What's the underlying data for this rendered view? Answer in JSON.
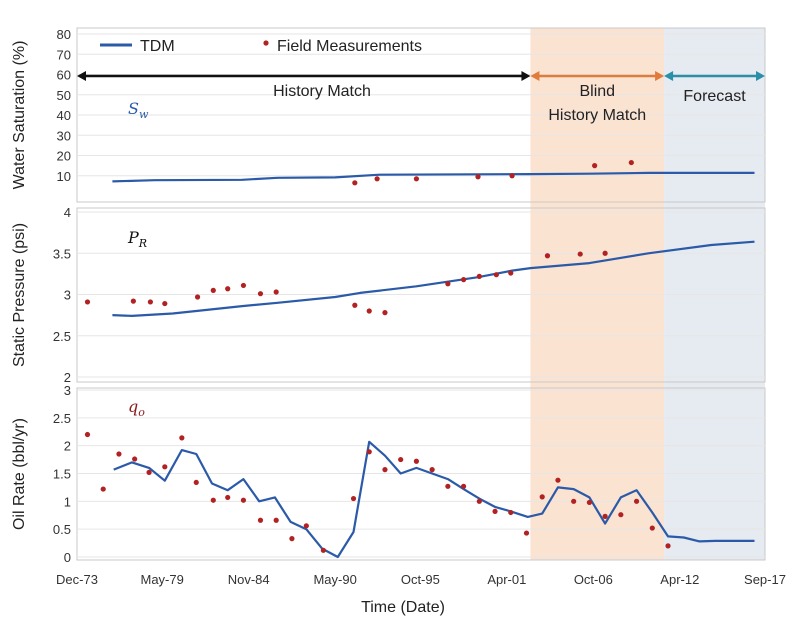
{
  "chart_data": {
    "type": "line",
    "xlabel": "Time (Date)",
    "x_ticks": [
      "Dec-73",
      "May-79",
      "Nov-84",
      "May-90",
      "Oct-95",
      "Apr-01",
      "Oct-06",
      "Apr-12",
      "Sep-17"
    ],
    "legend": {
      "line_label": "TDM",
      "dots_label": "Field Measurements",
      "placement": "top-left"
    },
    "colors": {
      "model": "#2b5aa8",
      "field": "#b22222",
      "history": "#111111",
      "blind": "#e07b39",
      "forecast": "#2a8fa8",
      "blind_fill": "#fbe3d2",
      "forecast_fill": "#e6eaf1"
    },
    "regions": [
      {
        "name": "History Match",
        "label_lines": [
          "History Match"
        ],
        "start": "Dec-73",
        "end": "Oct-02"
      },
      {
        "name": "Blind History Match",
        "label_lines": [
          "Blind",
          "History Match"
        ],
        "start": "Oct-02",
        "end": "Apr-11"
      },
      {
        "name": "Forecast",
        "label_lines": [
          "Forecast"
        ],
        "start": "Apr-11",
        "end": "Sep-17"
      }
    ],
    "panels": [
      {
        "ylabel": "Water Saturation (%)",
        "symbol": "S",
        "symbol_sub": "w",
        "symbol_color": "#2b5aa8",
        "ylim": [
          0,
          80
        ],
        "yticks": [
          10,
          20,
          30,
          40,
          50,
          60,
          70,
          80
        ],
        "ytick_labels": [
          "10",
          "20",
          "30",
          "40",
          "50",
          "60",
          "70",
          "80"
        ],
        "model": [
          [
            "Mar-76",
            7.2
          ],
          [
            "Nov-78",
            7.8
          ],
          [
            "Jun-84",
            8.0
          ],
          [
            "Sep-86",
            9.0
          ],
          [
            "May-90",
            9.2
          ],
          [
            "Mar-93",
            10.5
          ],
          [
            "Oct-02",
            10.8
          ],
          [
            "Jul-06",
            11.0
          ],
          [
            "Apr-10",
            11.4
          ],
          [
            "Jan-17",
            11.4
          ]
        ],
        "field": [
          [
            "Aug-91",
            6.5
          ],
          [
            "Jan-93",
            8.5
          ],
          [
            "Jul-95",
            8.5
          ],
          [
            "Jun-99",
            9.5
          ],
          [
            "Aug-01",
            10.0
          ],
          [
            "Nov-06",
            15.0
          ],
          [
            "Mar-09",
            16.5
          ]
        ]
      },
      {
        "ylabel": "Static Pressure (psi)",
        "symbol": "P",
        "symbol_sub": "R",
        "symbol_color": "#111111",
        "ylim": [
          2,
          4
        ],
        "yticks": [
          2,
          2.5,
          3,
          3.5,
          4
        ],
        "ytick_labels": [
          "2",
          "2.5",
          "3",
          "3.5",
          "4"
        ],
        "model": [
          [
            "Mar-76",
            2.75
          ],
          [
            "Jun-77",
            2.74
          ],
          [
            "Jan-80",
            2.77
          ],
          [
            "Jun-84",
            2.86
          ],
          [
            "Sep-86",
            2.9
          ],
          [
            "May-90",
            2.97
          ],
          [
            "Dec-91",
            3.02
          ],
          [
            "Jul-95",
            3.1
          ],
          [
            "Jun-99",
            3.21
          ],
          [
            "Aug-01",
            3.29
          ],
          [
            "Oct-02",
            3.32
          ],
          [
            "Jul-06",
            3.38
          ],
          [
            "Apr-10",
            3.5
          ],
          [
            "Apr-14",
            3.6
          ],
          [
            "Jan-17",
            3.64
          ]
        ],
        "field": [
          [
            "Aug-74",
            2.91
          ],
          [
            "Jul-77",
            2.92
          ],
          [
            "Aug-78",
            2.91
          ],
          [
            "Jul-79",
            2.89
          ],
          [
            "Aug-81",
            2.97
          ],
          [
            "Aug-82",
            3.05
          ],
          [
            "Jul-83",
            3.07
          ],
          [
            "Jul-84",
            3.11
          ],
          [
            "Aug-85",
            3.01
          ],
          [
            "Aug-86",
            3.03
          ],
          [
            "Aug-91",
            2.87
          ],
          [
            "Jul-92",
            2.8
          ],
          [
            "Jul-93",
            2.78
          ],
          [
            "Jul-97",
            3.13
          ],
          [
            "Jul-98",
            3.18
          ],
          [
            "Jul-99",
            3.22
          ],
          [
            "Aug-00",
            3.24
          ],
          [
            "Jul-01",
            3.26
          ],
          [
            "Nov-03",
            3.47
          ],
          [
            "Dec-05",
            3.49
          ],
          [
            "Jul-07",
            3.5
          ]
        ]
      },
      {
        "ylabel": "Oil Rate (bbl/yr)",
        "symbol": "q",
        "symbol_sub": "o",
        "symbol_color": "#8b1a1a",
        "ylim": [
          0,
          3
        ],
        "yticks": [
          0,
          0.5,
          1,
          1.5,
          2,
          2.5,
          3
        ],
        "ytick_labels": [
          "0",
          "0.5",
          "1",
          "1.5",
          "2",
          "2.5",
          "3"
        ],
        "model": [
          [
            "Apr-76",
            1.57
          ],
          [
            "Jun-77",
            1.7
          ],
          [
            "Jul-78",
            1.6
          ],
          [
            "Jul-79",
            1.37
          ],
          [
            "Aug-80",
            1.92
          ],
          [
            "Jul-81",
            1.85
          ],
          [
            "Jul-82",
            1.32
          ],
          [
            "Jul-83",
            1.2
          ],
          [
            "Jul-84",
            1.4
          ],
          [
            "Jul-85",
            1.0
          ],
          [
            "Jul-86",
            1.07
          ],
          [
            "Jul-87",
            0.63
          ],
          [
            "Jul-88",
            0.5
          ],
          [
            "Jul-89",
            0.15
          ],
          [
            "Jul-90",
            0.0
          ],
          [
            "Jul-91",
            0.45
          ],
          [
            "Jul-92",
            2.07
          ],
          [
            "Jul-93",
            1.82
          ],
          [
            "Jul-94",
            1.5
          ],
          [
            "Jul-95",
            1.6
          ],
          [
            "Jul-96",
            1.5
          ],
          [
            "Jul-97",
            1.4
          ],
          [
            "Jul-98",
            1.22
          ],
          [
            "Jul-99",
            1.05
          ],
          [
            "Jul-00",
            0.9
          ],
          [
            "Jul-01",
            0.82
          ],
          [
            "Aug-02",
            0.72
          ],
          [
            "Jul-03",
            0.78
          ],
          [
            "Jul-04",
            1.25
          ],
          [
            "Jul-05",
            1.22
          ],
          [
            "Jul-06",
            1.07
          ],
          [
            "Jul-07",
            0.6
          ],
          [
            "Jul-08",
            1.07
          ],
          [
            "Jul-09",
            1.2
          ],
          [
            "Jul-10",
            0.8
          ],
          [
            "Jul-11",
            0.37
          ],
          [
            "Jul-12",
            0.35
          ],
          [
            "Jul-13",
            0.28
          ],
          [
            "Jul-14",
            0.29
          ],
          [
            "Jan-17",
            0.29
          ]
        ]
      }
    ],
    "field_rate": [
      [
        "Aug-74",
        2.2
      ],
      [
        "Aug-75",
        1.22
      ],
      [
        "Aug-76",
        1.85
      ],
      [
        "Aug-77",
        1.76
      ],
      [
        "Jul-78",
        1.52
      ],
      [
        "Jul-79",
        1.62
      ],
      [
        "Aug-80",
        2.14
      ],
      [
        "Jul-81",
        1.34
      ],
      [
        "Aug-82",
        1.02
      ],
      [
        "Jul-83",
        1.07
      ],
      [
        "Jul-84",
        1.02
      ],
      [
        "Aug-85",
        0.66
      ],
      [
        "Aug-86",
        0.66
      ],
      [
        "Aug-87",
        0.33
      ],
      [
        "Jul-88",
        0.56
      ],
      [
        "Aug-89",
        0.12
      ],
      [
        "Jul-91",
        1.05
      ],
      [
        "Jul-92",
        1.89
      ],
      [
        "Jul-93",
        1.57
      ],
      [
        "Jul-94",
        1.75
      ],
      [
        "Jul-95",
        1.72
      ],
      [
        "Jul-96",
        1.57
      ],
      [
        "Jul-97",
        1.27
      ],
      [
        "Jul-98",
        1.27
      ],
      [
        "Jul-99",
        1.0
      ],
      [
        "Jul-00",
        0.82
      ],
      [
        "Jul-01",
        0.8
      ],
      [
        "Jul-02",
        0.43
      ],
      [
        "Jul-03",
        1.08
      ],
      [
        "Jul-04",
        1.38
      ],
      [
        "Jul-05",
        1.0
      ],
      [
        "Jul-06",
        0.98
      ],
      [
        "Jul-07",
        0.73
      ],
      [
        "Jul-08",
        0.76
      ],
      [
        "Jul-09",
        1.0
      ],
      [
        "Jul-10",
        0.52
      ],
      [
        "Jul-11",
        0.2
      ]
    ]
  }
}
